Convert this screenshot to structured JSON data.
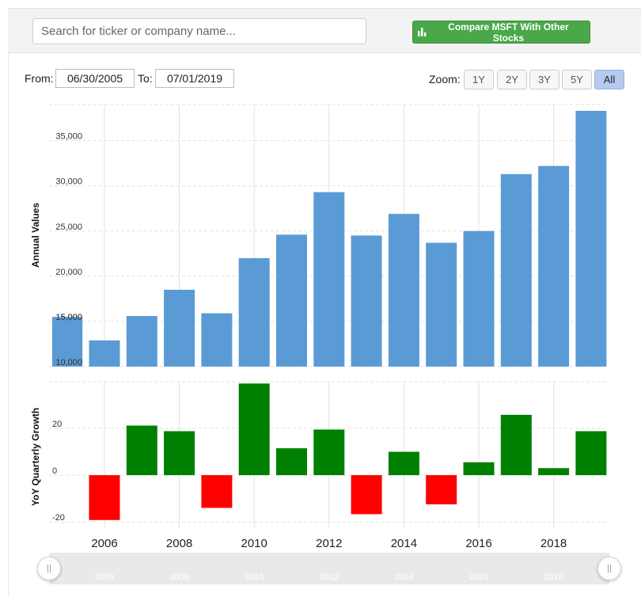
{
  "search": {
    "placeholder": "Search for ticker or company name..."
  },
  "compare_button": {
    "label": "Compare MSFT With Other Stocks",
    "icon": "bar-chart-icon"
  },
  "range": {
    "from_label": "From:",
    "from_value": "06/30/2005",
    "to_label": "To:",
    "to_value": "07/01/2019"
  },
  "zoom": {
    "label": "Zoom:",
    "options": [
      "1Y",
      "2Y",
      "3Y",
      "5Y",
      "All"
    ],
    "active": "All"
  },
  "navigator": {
    "left_handle": "||",
    "right_handle": "||",
    "icon": "range-handle-icon"
  },
  "colors": {
    "bar": "#5b9bd5",
    "positive": "#008000",
    "negative": "#ff0000",
    "grid": "#e2e2e2"
  },
  "chart_data": [
    {
      "type": "bar",
      "ylabel": "Annual Values",
      "ylim": [
        10000,
        39000
      ],
      "yticks": [
        "10,000",
        "15,000",
        "20,000",
        "25,000",
        "30,000",
        "35,000"
      ],
      "ytick_values": [
        10000,
        15000,
        20000,
        25000,
        30000,
        35000
      ],
      "x": [
        2005,
        2006,
        2007,
        2008,
        2009,
        2010,
        2011,
        2012,
        2013,
        2014,
        2015,
        2016,
        2017,
        2018,
        2019
      ],
      "values": [
        15500,
        12900,
        15600,
        18500,
        15900,
        22000,
        24600,
        29300,
        24500,
        26900,
        23700,
        25000,
        31300,
        32200,
        38300
      ],
      "grid": true
    },
    {
      "type": "bar",
      "ylabel": "YoY Quarterly Growth",
      "ylim": [
        -23,
        40
      ],
      "yticks": [
        "-20",
        "0",
        "20"
      ],
      "ytick_values": [
        -20,
        0,
        20
      ],
      "x": [
        2006,
        2007,
        2008,
        2009,
        2010,
        2011,
        2012,
        2013,
        2014,
        2015,
        2016,
        2017,
        2018,
        2019
      ],
      "values": [
        -19.2,
        21.2,
        18.8,
        -14,
        39.2,
        11.5,
        19.5,
        -16.7,
        10,
        -12.5,
        5.5,
        25.8,
        3,
        18.8
      ],
      "xticks": [
        "2006",
        "2008",
        "2010",
        "2012",
        "2014",
        "2016",
        "2018"
      ],
      "xtick_values": [
        2006,
        2008,
        2010,
        2012,
        2014,
        2016,
        2018
      ],
      "navigator_ticks": [
        "2006",
        "2008",
        "2010",
        "2012",
        "2014",
        "2016",
        "2018"
      ],
      "grid": true
    }
  ]
}
